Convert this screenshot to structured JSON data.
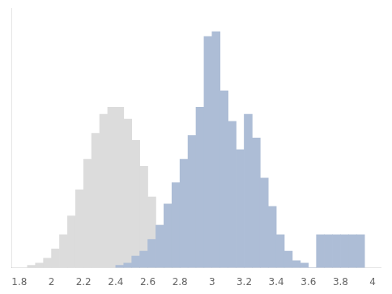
{
  "chart_data": {
    "type": "histogram",
    "series": [
      {
        "color": "#dcdcdc",
        "bins": [
          1.85,
          1.9,
          1.95,
          2.0,
          2.05,
          2.1,
          2.15,
          2.2,
          2.25,
          2.3,
          2.35,
          2.4,
          2.45,
          2.5,
          2.55,
          2.6,
          2.65,
          2.7,
          2.75,
          2.8
        ],
        "values": [
          1,
          2,
          4,
          8,
          14,
          22,
          33,
          46,
          57,
          65,
          68,
          68,
          63,
          54,
          43,
          30,
          18,
          8,
          3
        ]
      },
      {
        "color": "#adbdd6",
        "bins": [
          2.4,
          2.45,
          2.5,
          2.55,
          2.6,
          2.65,
          2.7,
          2.75,
          2.8,
          2.85,
          2.9,
          2.95,
          3.0,
          3.05,
          3.1,
          3.15,
          3.2,
          3.25,
          3.3,
          3.35,
          3.4,
          3.45,
          3.5,
          3.55,
          3.6,
          3.65,
          3.7,
          3.75,
          3.8,
          3.85,
          3.9,
          3.95
        ],
        "values": [
          1,
          2,
          5,
          7,
          12,
          18,
          27,
          36,
          46,
          56,
          68,
          98,
          100,
          75,
          62,
          50,
          65,
          55,
          38,
          26,
          14,
          7,
          3,
          2,
          0,
          14,
          14,
          14,
          14,
          14,
          14
        ]
      }
    ],
    "xlim": [
      1.75,
      4.05
    ],
    "ylim": [
      0,
      110
    ],
    "xticks": [
      1.8,
      2,
      2.2,
      2.4,
      2.6,
      2.8,
      3,
      3.2,
      3.4,
      3.6,
      3.8,
      4
    ],
    "tick_labels": "x",
    "grid": false
  }
}
